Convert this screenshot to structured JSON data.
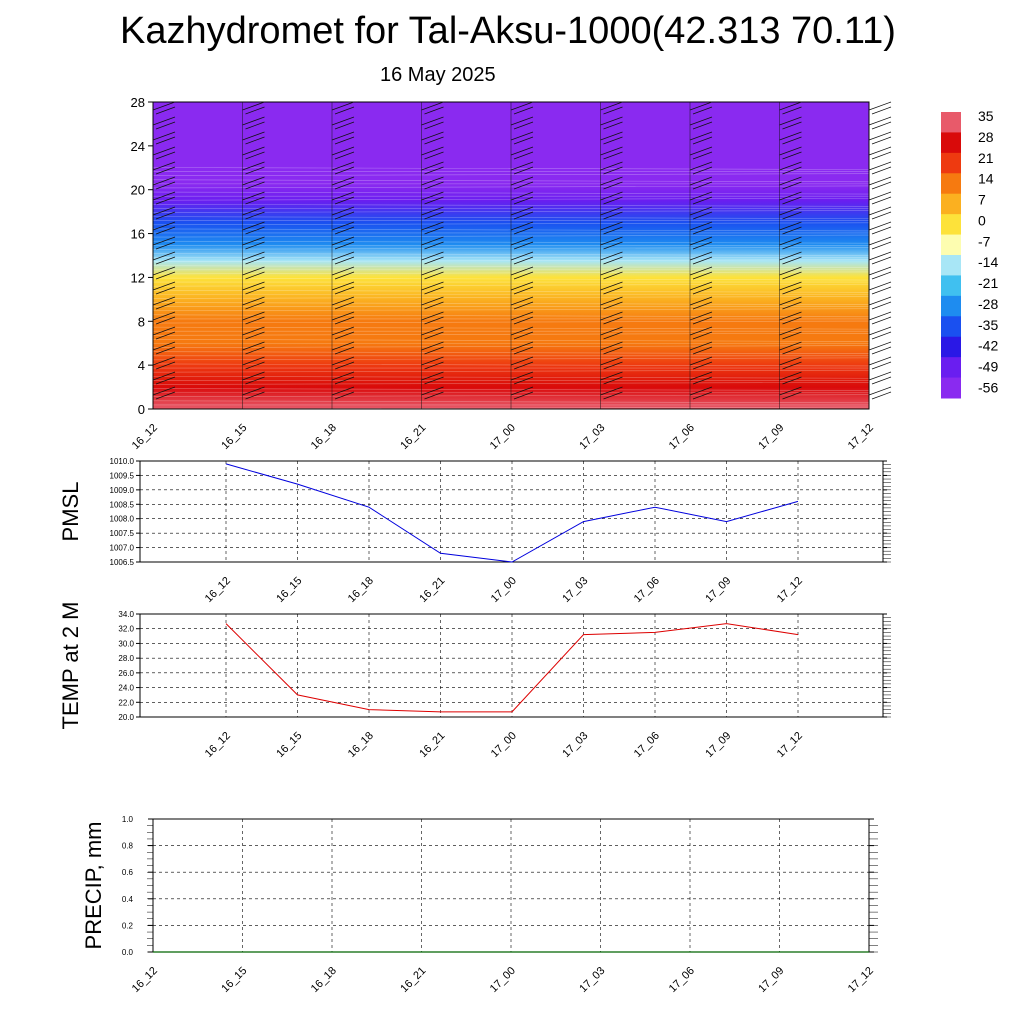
{
  "title": "Kazhydromet for Tal-Aksu-1000(42.313 70.11)",
  "subtitle": "16 May 2025",
  "chart_data": [
    {
      "type": "heatmap",
      "description_of_field": "time-height temperature cross-section with wind barbs",
      "x_ticks": [
        "16_12",
        "16_15",
        "16_18",
        "16_21",
        "17_00",
        "17_03",
        "17_06",
        "17_09",
        "17_12"
      ],
      "y_ticks": [
        0,
        4,
        8,
        12,
        16,
        20,
        24,
        28
      ],
      "ylim": [
        0,
        28
      ],
      "colorbar_labels": [
        35,
        28,
        21,
        14,
        7,
        0,
        -7,
        -14,
        -21,
        -28,
        -35,
        -42,
        -49,
        -56
      ],
      "colorscale": [
        "#e85a6a",
        "#d90a0a",
        "#ee3a10",
        "#f67a10",
        "#fbb020",
        "#fde23a",
        "#fdfdb0",
        "#a8e6f6",
        "#40c0f0",
        "#1e8cf0",
        "#1a50f0",
        "#2a18e6",
        "#6a1ef0",
        "#8a2af0"
      ],
      "field_levels": [
        {
          "h": 0,
          "t": 32
        },
        {
          "h": 2,
          "t": 28
        },
        {
          "h": 4,
          "t": 23
        },
        {
          "h": 6,
          "t": 17
        },
        {
          "h": 8,
          "t": 11
        },
        {
          "h": 10,
          "t": 4
        },
        {
          "h": 12,
          "t": -4
        },
        {
          "h": 13.5,
          "t": -14
        },
        {
          "h": 15,
          "t": -26
        },
        {
          "h": 17,
          "t": -38
        },
        {
          "h": 19,
          "t": -50
        },
        {
          "h": 20.5,
          "t": -56
        },
        {
          "h": 22,
          "t": -58
        },
        {
          "h": 28,
          "t": -58
        }
      ]
    },
    {
      "type": "line",
      "ylabel": "PMSL",
      "categories": [
        "16_12",
        "16_15",
        "16_18",
        "16_21",
        "17_00",
        "17_03",
        "17_06",
        "17_09",
        "17_12"
      ],
      "values": [
        1009.9,
        1009.2,
        1008.4,
        1006.8,
        1006.5,
        1007.9,
        1008.4,
        1007.9,
        1008.6
      ],
      "ylim": [
        1006.5,
        1010.0
      ],
      "y_ticks": [
        "1006.5",
        "1007.0",
        "1007.5",
        "1008.0",
        "1008.5",
        "1009.0",
        "1009.5",
        "1010.0"
      ],
      "color": "#0000dd"
    },
    {
      "type": "line",
      "ylabel": "TEMP at 2 M",
      "categories": [
        "16_12",
        "16_15",
        "16_18",
        "16_21",
        "17_00",
        "17_03",
        "17_06",
        "17_09",
        "17_12"
      ],
      "values": [
        32.7,
        23.0,
        21.0,
        20.7,
        20.7,
        31.2,
        31.5,
        32.7,
        31.2
      ],
      "ylim": [
        20.0,
        34.0
      ],
      "y_ticks": [
        "20.0",
        "22.0",
        "24.0",
        "26.0",
        "28.0",
        "30.0",
        "32.0",
        "34.0"
      ],
      "color": "#dd0000"
    },
    {
      "type": "line",
      "ylabel": "PRECIP, mm",
      "x_ticks": [
        "16_12",
        "16_15",
        "16_18",
        "16_21",
        "17_00",
        "17_03",
        "17_06",
        "17_09",
        "17_12"
      ],
      "values": [
        0,
        0,
        0,
        0,
        0,
        0,
        0,
        0,
        0
      ],
      "ylim": [
        0.0,
        1.0
      ],
      "y_ticks": [
        "0.0",
        "0.2",
        "0.4",
        "0.6",
        "0.8",
        "1.0"
      ],
      "color": "#006400"
    }
  ]
}
